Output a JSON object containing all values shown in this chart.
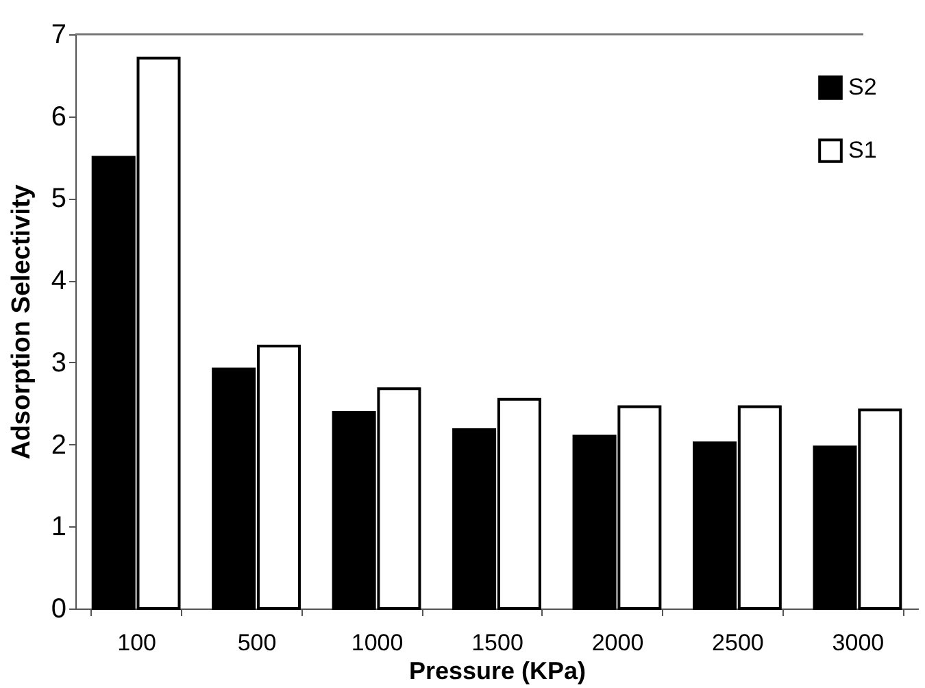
{
  "chart_data": {
    "type": "bar",
    "xlabel": "Pressure (KPa)",
    "ylabel": "Adsorption Selectivity",
    "categories": [
      "100",
      "500",
      "1000",
      "1500",
      "2000",
      "2500",
      "3000"
    ],
    "series": [
      {
        "name": "S2",
        "color": "#000000",
        "values": [
          5.5,
          2.92,
          2.39,
          2.18,
          2.1,
          2.02,
          1.97
        ]
      },
      {
        "name": "S1",
        "color": "#ffffff",
        "values": [
          6.71,
          3.2,
          2.68,
          2.55,
          2.46,
          2.46,
          2.42
        ]
      }
    ],
    "ylim": [
      0,
      7
    ],
    "yticks": [
      0,
      1,
      2,
      3,
      4,
      5,
      6,
      7
    ],
    "grid": false,
    "legend": "top right"
  }
}
